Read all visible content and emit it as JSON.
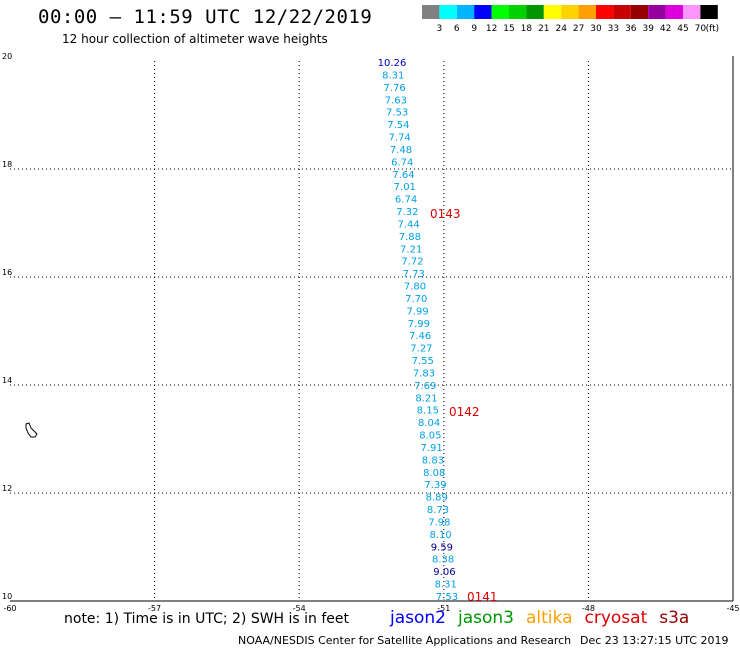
{
  "header": {
    "title": "00:00 – 11:59 UTC 12/22/2019",
    "subtitle": "12 hour collection of altimeter wave heights"
  },
  "colorbar": {
    "unit": "(ft)",
    "colors": [
      "#808080",
      "#00ffff",
      "#00b4ff",
      "#0000ff",
      "#00ff00",
      "#00d200",
      "#009600",
      "#ffff00",
      "#ffd200",
      "#ffa000",
      "#ff0000",
      "#c80000",
      "#960000",
      "#9600a0",
      "#dc00dc",
      "#ff96ff",
      "#000000"
    ],
    "labels": [
      "3",
      "6",
      "9",
      "12",
      "15",
      "18",
      "21",
      "24",
      "27",
      "30",
      "33",
      "36",
      "39",
      "42",
      "45",
      "70"
    ]
  },
  "map": {
    "lon_range": [
      -60,
      -45
    ],
    "lat_range": [
      10,
      20
    ],
    "x_ticks": [
      "-60",
      "-57",
      "-54",
      "-51",
      "-48",
      "-45"
    ],
    "y_ticks": [
      "20",
      "18",
      "16",
      "14",
      "12",
      "10"
    ],
    "passes": [
      {
        "label": "0143",
        "color": "#dc0000"
      },
      {
        "label": "0142",
        "color": "#dc0000"
      },
      {
        "label": "0141",
        "color": "#dc0000"
      }
    ],
    "track": [
      {
        "v": "10.26",
        "c": "#0000c8"
      },
      {
        "v": "8.31",
        "c": "#00a0e6"
      },
      {
        "v": "7.76",
        "c": "#00a0e6"
      },
      {
        "v": "7.63",
        "c": "#00a0e6"
      },
      {
        "v": "7.53",
        "c": "#00a0e6"
      },
      {
        "v": "7.54",
        "c": "#00a0e6"
      },
      {
        "v": "7.74",
        "c": "#00a0e6"
      },
      {
        "v": "7.48",
        "c": "#00a0e6"
      },
      {
        "v": "6.74",
        "c": "#00a0e6"
      },
      {
        "v": "7.64",
        "c": "#00a0e6"
      },
      {
        "v": "7.01",
        "c": "#00a0e6"
      },
      {
        "v": "6.74",
        "c": "#00a0e6"
      },
      {
        "v": "7.32",
        "c": "#00a0e6"
      },
      {
        "v": "7.44",
        "c": "#00a0e6"
      },
      {
        "v": "7.88",
        "c": "#00a0e6"
      },
      {
        "v": "7.21",
        "c": "#00a0e6"
      },
      {
        "v": "7.72",
        "c": "#00a0e6"
      },
      {
        "v": "7.73",
        "c": "#00a0e6"
      },
      {
        "v": "7.80",
        "c": "#00a0e6"
      },
      {
        "v": "7.70",
        "c": "#00a0e6"
      },
      {
        "v": "7.99",
        "c": "#00a0e6"
      },
      {
        "v": "7.99",
        "c": "#00a0e6"
      },
      {
        "v": "7.46",
        "c": "#00a0e6"
      },
      {
        "v": "7.27",
        "c": "#00a0e6"
      },
      {
        "v": "7.55",
        "c": "#00a0e6"
      },
      {
        "v": "7.83",
        "c": "#00a0e6"
      },
      {
        "v": "7.69",
        "c": "#00a0e6"
      },
      {
        "v": "8.21",
        "c": "#00a0e6"
      },
      {
        "v": "8.15",
        "c": "#00a0e6"
      },
      {
        "v": "8.04",
        "c": "#00a0e6"
      },
      {
        "v": "8.05",
        "c": "#00a0e6"
      },
      {
        "v": "7.91",
        "c": "#00a0e6"
      },
      {
        "v": "8.83",
        "c": "#00a0e6"
      },
      {
        "v": "8.08",
        "c": "#00a0e6"
      },
      {
        "v": "7.39",
        "c": "#00a0e6"
      },
      {
        "v": "8.89",
        "c": "#00a0e6"
      },
      {
        "v": "8.73",
        "c": "#00a0e6"
      },
      {
        "v": "7.98",
        "c": "#00a0e6"
      },
      {
        "v": "8.10",
        "c": "#00a0e6"
      },
      {
        "v": "9.59",
        "c": "#00008c"
      },
      {
        "v": "8.38",
        "c": "#00a0e6"
      },
      {
        "v": "9.06",
        "c": "#00008c"
      },
      {
        "v": "8.31",
        "c": "#00a0e6"
      },
      {
        "v": "7.53",
        "c": "#00a0e6"
      }
    ]
  },
  "footer": {
    "note": "note: 1) Time is in UTC; 2) SWH is in feet",
    "legend": [
      {
        "name": "jason2",
        "color": "#0000ff"
      },
      {
        "name": "jason3",
        "color": "#009600"
      },
      {
        "name": "altika",
        "color": "#ffa000"
      },
      {
        "name": "cryosat",
        "color": "#dc0000"
      },
      {
        "name": "s3a",
        "color": "#960000"
      }
    ],
    "credit": "NOAA/NESDIS Center for Satellite Applications and Research",
    "timestamp": "Dec 23 13:27:15 UTC 2019"
  }
}
